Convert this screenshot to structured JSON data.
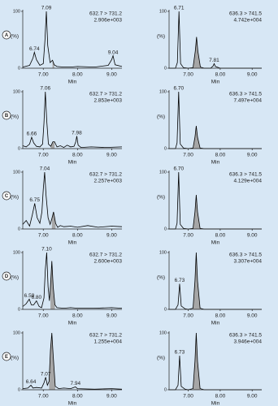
{
  "chart_data": [
    {
      "type": "line",
      "panel": "A",
      "transition": "632.7 > 731.2",
      "intensity": "2.906e+003",
      "ylabel": "(%)",
      "xlabel": "Min",
      "x": [
        6.4,
        6.6,
        6.7,
        6.74,
        6.8,
        6.9,
        7.0,
        7.05,
        7.09,
        7.13,
        7.2,
        7.27,
        7.32,
        7.4,
        7.6,
        7.8,
        8.0,
        8.5,
        8.9,
        9.0,
        9.04,
        9.1,
        9.3
      ],
      "values": [
        2,
        5,
        18,
        28,
        15,
        5,
        8,
        50,
        100,
        40,
        10,
        14,
        6,
        3,
        2,
        2,
        3,
        2,
        5,
        15,
        22,
        6,
        3
      ],
      "shade": [
        7.22,
        7.36
      ],
      "color": "#000000",
      "shade_color": "#a6a6a6",
      "peak_labels": [
        6.74,
        7.09,
        9.04
      ],
      "xlim": [
        6.4,
        9.3
      ],
      "ylim": [
        0,
        100
      ],
      "yticks": [
        0,
        100
      ],
      "xticks": [
        {
          "value": 7,
          "label": "7.00"
        },
        {
          "value": 8,
          "label": "8.00"
        },
        {
          "value": 9,
          "label": "9.00"
        }
      ]
    },
    {
      "type": "line",
      "transition": "636.3 > 741.5",
      "intensity": "4.742e+004",
      "ylabel": "(%)",
      "xlabel": "Min",
      "x": [
        6.4,
        6.6,
        6.66,
        6.71,
        6.76,
        6.85,
        7.0,
        7.15,
        7.22,
        7.26,
        7.3,
        7.38,
        7.5,
        7.7,
        7.78,
        7.81,
        7.85,
        8.0,
        8.5,
        9.3
      ],
      "values": [
        0,
        0,
        10,
        100,
        8,
        1,
        0,
        1,
        30,
        55,
        30,
        2,
        0,
        0,
        4,
        8,
        3,
        0,
        0,
        0
      ],
      "shade": [
        7.15,
        7.38
      ],
      "color": "#000000",
      "shade_color": "#a6a6a6",
      "peak_labels": [
        6.71,
        7.81
      ],
      "xlim": [
        6.4,
        9.3
      ],
      "ylim": [
        0,
        100
      ],
      "yticks": [
        0,
        100
      ],
      "xticks": [
        {
          "value": 7,
          "label": "7.00"
        },
        {
          "value": 8,
          "label": "8.00"
        },
        {
          "value": 9,
          "label": "9.00"
        }
      ]
    },
    {
      "type": "line",
      "panel": "B",
      "transition": "632.7 > 731.2",
      "intensity": "2.853e+003",
      "ylabel": "(%)",
      "xlabel": "Min",
      "x": [
        6.4,
        6.5,
        6.6,
        6.66,
        6.72,
        6.8,
        6.9,
        6.98,
        7.02,
        7.06,
        7.1,
        7.15,
        7.22,
        7.28,
        7.33,
        7.4,
        7.5,
        7.6,
        7.7,
        7.8,
        7.9,
        7.95,
        7.98,
        8.02,
        8.1,
        8.4,
        8.8,
        9.3
      ],
      "values": [
        5,
        3,
        8,
        20,
        10,
        4,
        3,
        8,
        45,
        100,
        50,
        8,
        4,
        12,
        12,
        3,
        5,
        2,
        6,
        3,
        4,
        12,
        22,
        6,
        2,
        3,
        2,
        3
      ],
      "shade": [
        7.22,
        7.36
      ],
      "color": "#000000",
      "shade_color": "#a6a6a6",
      "peak_labels": [
        6.66,
        7.06,
        7.98
      ],
      "xlim": [
        6.4,
        9.3
      ],
      "ylim": [
        0,
        100
      ],
      "yticks": [
        0,
        100
      ],
      "xticks": [
        {
          "value": 7,
          "label": "7.00"
        },
        {
          "value": 8,
          "label": "8.00"
        },
        {
          "value": 9,
          "label": "9.00"
        }
      ]
    },
    {
      "type": "line",
      "transition": "636.3 > 741.5",
      "intensity": "7.497e+004",
      "ylabel": "(%)",
      "xlabel": "Min",
      "x": [
        6.4,
        6.6,
        6.65,
        6.7,
        6.75,
        6.85,
        7.0,
        7.15,
        7.21,
        7.25,
        7.29,
        7.37,
        7.5,
        8.0,
        8.5,
        9.3
      ],
      "values": [
        0,
        0,
        10,
        100,
        8,
        1,
        0,
        1,
        20,
        40,
        20,
        1,
        0,
        0,
        0,
        0
      ],
      "shade": [
        7.15,
        7.37
      ],
      "color": "#000000",
      "shade_color": "#a6a6a6",
      "peak_labels": [
        {
          "value": 6.7,
          "label": "6.70"
        }
      ],
      "xlim": [
        6.4,
        9.3
      ],
      "ylim": [
        0,
        100
      ],
      "yticks": [
        0,
        100
      ],
      "xticks": [
        {
          "value": 7,
          "label": "7.00"
        },
        {
          "value": 8,
          "label": "8.00"
        },
        {
          "value": 9,
          "label": "9.00"
        }
      ]
    },
    {
      "type": "line",
      "panel": "C",
      "transition": "632.7 > 731.2",
      "intensity": "2.257e+003",
      "ylabel": "(%)",
      "xlabel": "Min",
      "x": [
        6.4,
        6.5,
        6.6,
        6.68,
        6.75,
        6.82,
        6.9,
        6.96,
        7.0,
        7.04,
        7.08,
        7.14,
        7.2,
        7.25,
        7.3,
        7.36,
        7.42,
        7.5,
        7.6,
        7.8,
        8.0,
        8.3,
        8.6,
        9.0,
        9.3
      ],
      "values": [
        8,
        15,
        5,
        25,
        45,
        20,
        10,
        30,
        70,
        100,
        60,
        20,
        8,
        18,
        30,
        10,
        3,
        6,
        4,
        5,
        3,
        6,
        3,
        5,
        4
      ],
      "shade": [
        7.22,
        7.38
      ],
      "color": "#000000",
      "shade_color": "#a6a6a6",
      "peak_labels": [
        6.75,
        7.04
      ],
      "xlim": [
        6.4,
        9.3
      ],
      "ylim": [
        0,
        100
      ],
      "yticks": [
        0,
        100
      ],
      "xticks": [
        {
          "value": 7,
          "label": "7.00"
        },
        {
          "value": 8,
          "label": "8.00"
        },
        {
          "value": 9,
          "label": "9.00"
        }
      ]
    },
    {
      "type": "line",
      "transition": "636.3 > 741.5",
      "intensity": "4.129e+004",
      "ylabel": "(%)",
      "xlabel": "Min",
      "x": [
        6.4,
        6.6,
        6.65,
        6.7,
        6.75,
        6.85,
        7.0,
        7.15,
        7.21,
        7.25,
        7.29,
        7.37,
        7.5,
        8.0,
        8.5,
        9.3
      ],
      "values": [
        0,
        0,
        10,
        100,
        8,
        1,
        0,
        1,
        30,
        60,
        30,
        1,
        0,
        0,
        0,
        0
      ],
      "shade": [
        7.15,
        7.37
      ],
      "color": "#000000",
      "shade_color": "#a6a6a6",
      "peak_labels": [
        {
          "value": 6.7,
          "label": "6.70"
        }
      ],
      "xlim": [
        6.4,
        9.3
      ],
      "ylim": [
        0,
        100
      ],
      "yticks": [
        0,
        100
      ],
      "xticks": [
        {
          "value": 7,
          "label": "7.00"
        },
        {
          "value": 8,
          "label": "8.00"
        },
        {
          "value": 9,
          "label": "9.00"
        }
      ]
    },
    {
      "type": "line",
      "panel": "D",
      "transition": "632.7 > 731.2",
      "intensity": "2.600e+003",
      "ylabel": "(%)",
      "xlabel": "Min",
      "x": [
        6.4,
        6.5,
        6.59,
        6.65,
        6.72,
        6.8,
        6.88,
        6.95,
        7.02,
        7.06,
        7.1,
        7.14,
        7.18,
        7.21,
        7.25,
        7.29,
        7.34,
        7.4,
        7.6,
        7.8,
        8.0,
        8.5,
        9.0,
        9.3
      ],
      "values": [
        5,
        10,
        18,
        8,
        8,
        15,
        5,
        3,
        20,
        70,
        100,
        40,
        15,
        40,
        85,
        40,
        8,
        3,
        2,
        3,
        2,
        2,
        3,
        2
      ],
      "shade": [
        7.19,
        7.36
      ],
      "color": "#000000",
      "shade_color": "#a6a6a6",
      "peak_labels": [
        6.59,
        {
          "value": 6.8,
          "label": "6.80"
        },
        {
          "value": 7.1,
          "label": "7.10"
        }
      ],
      "xlim": [
        6.4,
        9.3
      ],
      "ylim": [
        0,
        100
      ],
      "yticks": [
        0,
        100
      ],
      "xticks": [
        {
          "value": 7,
          "label": "7.00"
        },
        {
          "value": 8,
          "label": "8.00"
        },
        {
          "value": 9,
          "label": "9.00"
        }
      ]
    },
    {
      "type": "line",
      "transition": "636.3 > 741.5",
      "intensity": "3.307e+004",
      "ylabel": "(%)",
      "xlabel": "Min",
      "x": [
        6.4,
        6.6,
        6.68,
        6.73,
        6.78,
        6.9,
        7.0,
        7.15,
        7.21,
        7.25,
        7.29,
        7.37,
        7.5,
        8.0,
        8.5,
        9.3
      ],
      "values": [
        0,
        0,
        8,
        45,
        6,
        1,
        0,
        2,
        50,
        100,
        50,
        2,
        0,
        0,
        0,
        0
      ],
      "shade": [
        7.15,
        7.37
      ],
      "color": "#000000",
      "shade_color": "#a6a6a6",
      "peak_labels": [
        6.73
      ],
      "xlim": [
        6.4,
        9.3
      ],
      "ylim": [
        0,
        100
      ],
      "yticks": [
        0,
        100
      ],
      "xticks": [
        {
          "value": 7,
          "label": "7.00"
        },
        {
          "value": 8,
          "label": "8.00"
        },
        {
          "value": 9,
          "label": "9.00"
        }
      ]
    },
    {
      "type": "line",
      "panel": "E",
      "transition": "632.7 > 731.2",
      "intensity": "1.255e+004",
      "ylabel": "(%)",
      "xlabel": "Min",
      "x": [
        6.4,
        6.55,
        6.64,
        6.7,
        6.8,
        6.95,
        7.02,
        7.07,
        7.12,
        7.17,
        7.21,
        7.25,
        7.29,
        7.35,
        7.45,
        7.6,
        7.8,
        7.94,
        8.0,
        8.5,
        9.0,
        9.3
      ],
      "values": [
        2,
        3,
        8,
        3,
        4,
        3,
        12,
        22,
        8,
        15,
        70,
        100,
        60,
        6,
        2,
        3,
        2,
        5,
        2,
        1,
        2,
        1
      ],
      "shade": [
        7.16,
        7.36
      ],
      "color": "#000000",
      "shade_color": "#a6a6a6",
      "peak_labels": [
        6.64,
        7.07,
        7.94
      ],
      "xlim": [
        6.4,
        9.3
      ],
      "ylim": [
        0,
        100
      ],
      "yticks": [
        0,
        100
      ],
      "xticks": [
        {
          "value": 7,
          "label": "7.00"
        },
        {
          "value": 8,
          "label": "8.00"
        },
        {
          "value": 9,
          "label": "9.00"
        }
      ]
    },
    {
      "type": "line",
      "transition": "636.3 > 741.5",
      "intensity": "3.946e+004",
      "ylabel": "(%)",
      "xlabel": "Min",
      "x": [
        6.4,
        6.6,
        6.68,
        6.73,
        6.78,
        6.9,
        7.0,
        7.15,
        7.21,
        7.25,
        7.29,
        7.37,
        7.5,
        8.0,
        8.5,
        9.3
      ],
      "values": [
        0,
        0,
        8,
        60,
        6,
        1,
        0,
        2,
        50,
        100,
        50,
        2,
        0,
        0,
        0,
        0
      ],
      "shade": [
        7.15,
        7.37
      ],
      "color": "#000000",
      "shade_color": "#a6a6a6",
      "peak_labels": [
        6.73
      ],
      "xlim": [
        6.4,
        9.3
      ],
      "ylim": [
        0,
        100
      ],
      "yticks": [
        0,
        100
      ],
      "xticks": [
        {
          "value": 7,
          "label": "7.00"
        },
        {
          "value": 8,
          "label": "8.00"
        },
        {
          "value": 9,
          "label": "9.00"
        }
      ]
    }
  ]
}
